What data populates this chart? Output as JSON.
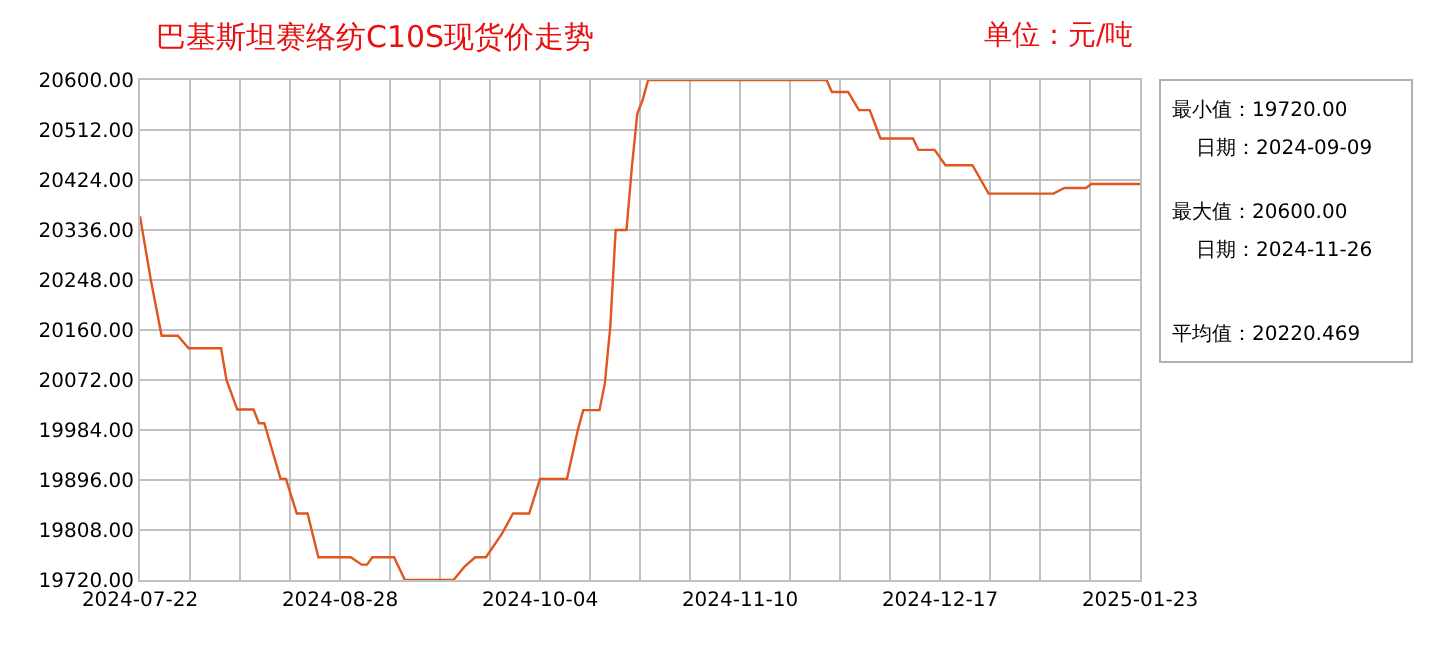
{
  "chart_data": {
    "type": "line",
    "title": "巴基斯坦赛络纺C10S现货价走势",
    "subtitle": "单位：元/吨",
    "x": [
      "2024-07-22",
      "2024-07-24",
      "2024-07-26",
      "2024-07-29",
      "2024-07-31",
      "2024-08-06",
      "2024-08-07",
      "2024-08-09",
      "2024-08-12",
      "2024-08-13",
      "2024-08-14",
      "2024-08-17",
      "2024-08-18",
      "2024-08-20",
      "2024-08-22",
      "2024-08-24",
      "2024-08-30",
      "2024-09-01",
      "2024-09-02",
      "2024-09-03",
      "2024-09-07",
      "2024-09-09",
      "2024-09-18",
      "2024-09-20",
      "2024-09-22",
      "2024-09-24",
      "2024-09-27",
      "2024-09-29",
      "2024-10-02",
      "2024-10-04",
      "2024-10-09",
      "2024-10-11",
      "2024-10-12",
      "2024-10-15",
      "2024-10-16",
      "2024-10-17",
      "2024-10-18",
      "2024-10-20",
      "2024-10-21",
      "2024-10-22",
      "2024-10-23",
      "2024-10-24",
      "2024-11-26",
      "2024-11-27",
      "2024-11-30",
      "2024-12-02",
      "2024-12-04",
      "2024-12-06",
      "2024-12-12",
      "2024-12-13",
      "2024-12-16",
      "2024-12-18",
      "2024-12-23",
      "2024-12-26",
      "2025-01-07",
      "2025-01-09",
      "2025-01-13",
      "2025-01-14",
      "2025-01-23"
    ],
    "series": [
      {
        "color": "#e0561e",
        "values": [
          20360,
          20248,
          20150,
          20150,
          20128,
          20128,
          20072,
          20020,
          20020,
          19996,
          19996,
          19898,
          19898,
          19837,
          19837,
          19760,
          19760,
          19747,
          19747,
          19760,
          19760,
          19720,
          19720,
          19743,
          19760,
          19760,
          19802,
          19837,
          19837,
          19898,
          19898,
          19984,
          20019,
          20019,
          20066,
          20166,
          20336,
          20336,
          20447,
          20541,
          20565,
          20600,
          20600,
          20579,
          20579,
          20547,
          20547,
          20497,
          20497,
          20477,
          20477,
          20450,
          20450,
          20400,
          20400,
          20410,
          20410,
          20417,
          20417
        ]
      }
    ],
    "xlim": [
      "2024-07-22",
      "2025-01-23"
    ],
    "xticks": [
      {
        "value": "2024-07-22",
        "label": "2024-07-22"
      },
      {
        "value": "2024-07-31T06:00",
        "label": null
      },
      {
        "value": "2024-08-09T12:00",
        "label": null
      },
      {
        "value": "2024-08-18T18:00",
        "label": null
      },
      {
        "value": "2024-08-28",
        "label": "2024-08-28"
      },
      {
        "value": "2024-09-06T06:00",
        "label": null
      },
      {
        "value": "2024-09-15T12:00",
        "label": null
      },
      {
        "value": "2024-09-24T18:00",
        "label": null
      },
      {
        "value": "2024-10-04",
        "label": "2024-10-04"
      },
      {
        "value": "2024-10-13T06:00",
        "label": null
      },
      {
        "value": "2024-10-22T12:00",
        "label": null
      },
      {
        "value": "2024-10-31T18:00",
        "label": null
      },
      {
        "value": "2024-11-10",
        "label": "2024-11-10"
      },
      {
        "value": "2024-11-19T06:00",
        "label": null
      },
      {
        "value": "2024-11-28T12:00",
        "label": null
      },
      {
        "value": "2024-12-07T18:00",
        "label": null
      },
      {
        "value": "2024-12-17",
        "label": "2024-12-17"
      },
      {
        "value": "2024-12-26T06:00",
        "label": null
      },
      {
        "value": "2025-01-04T12:00",
        "label": null
      },
      {
        "value": "2025-01-13T18:00",
        "label": null
      },
      {
        "value": "2025-01-23",
        "label": "2025-01-23"
      }
    ],
    "ylim": [
      19720,
      20600
    ],
    "yticks": [
      {
        "value": 19720,
        "label": "19720.00"
      },
      {
        "value": 19808,
        "label": "19808.00"
      },
      {
        "value": 19896,
        "label": "19896.00"
      },
      {
        "value": 19984,
        "label": "19984.00"
      },
      {
        "value": 20072,
        "label": "20072.00"
      },
      {
        "value": 20160,
        "label": "20160.00"
      },
      {
        "value": 20248,
        "label": "20248.00"
      },
      {
        "value": 20336,
        "label": "20336.00"
      },
      {
        "value": 20424,
        "label": "20424.00"
      },
      {
        "value": 20512,
        "label": "20512.00"
      },
      {
        "value": 20600,
        "label": "20600.00"
      }
    ],
    "grid": true,
    "legend": false,
    "marker": "none",
    "line_style": "solid",
    "annotations": [
      "最小值：19720.00",
      "日期：2024-09-09",
      "最大值：20600.00",
      "日期：2024-11-26",
      "平均值：20220.469"
    ]
  }
}
